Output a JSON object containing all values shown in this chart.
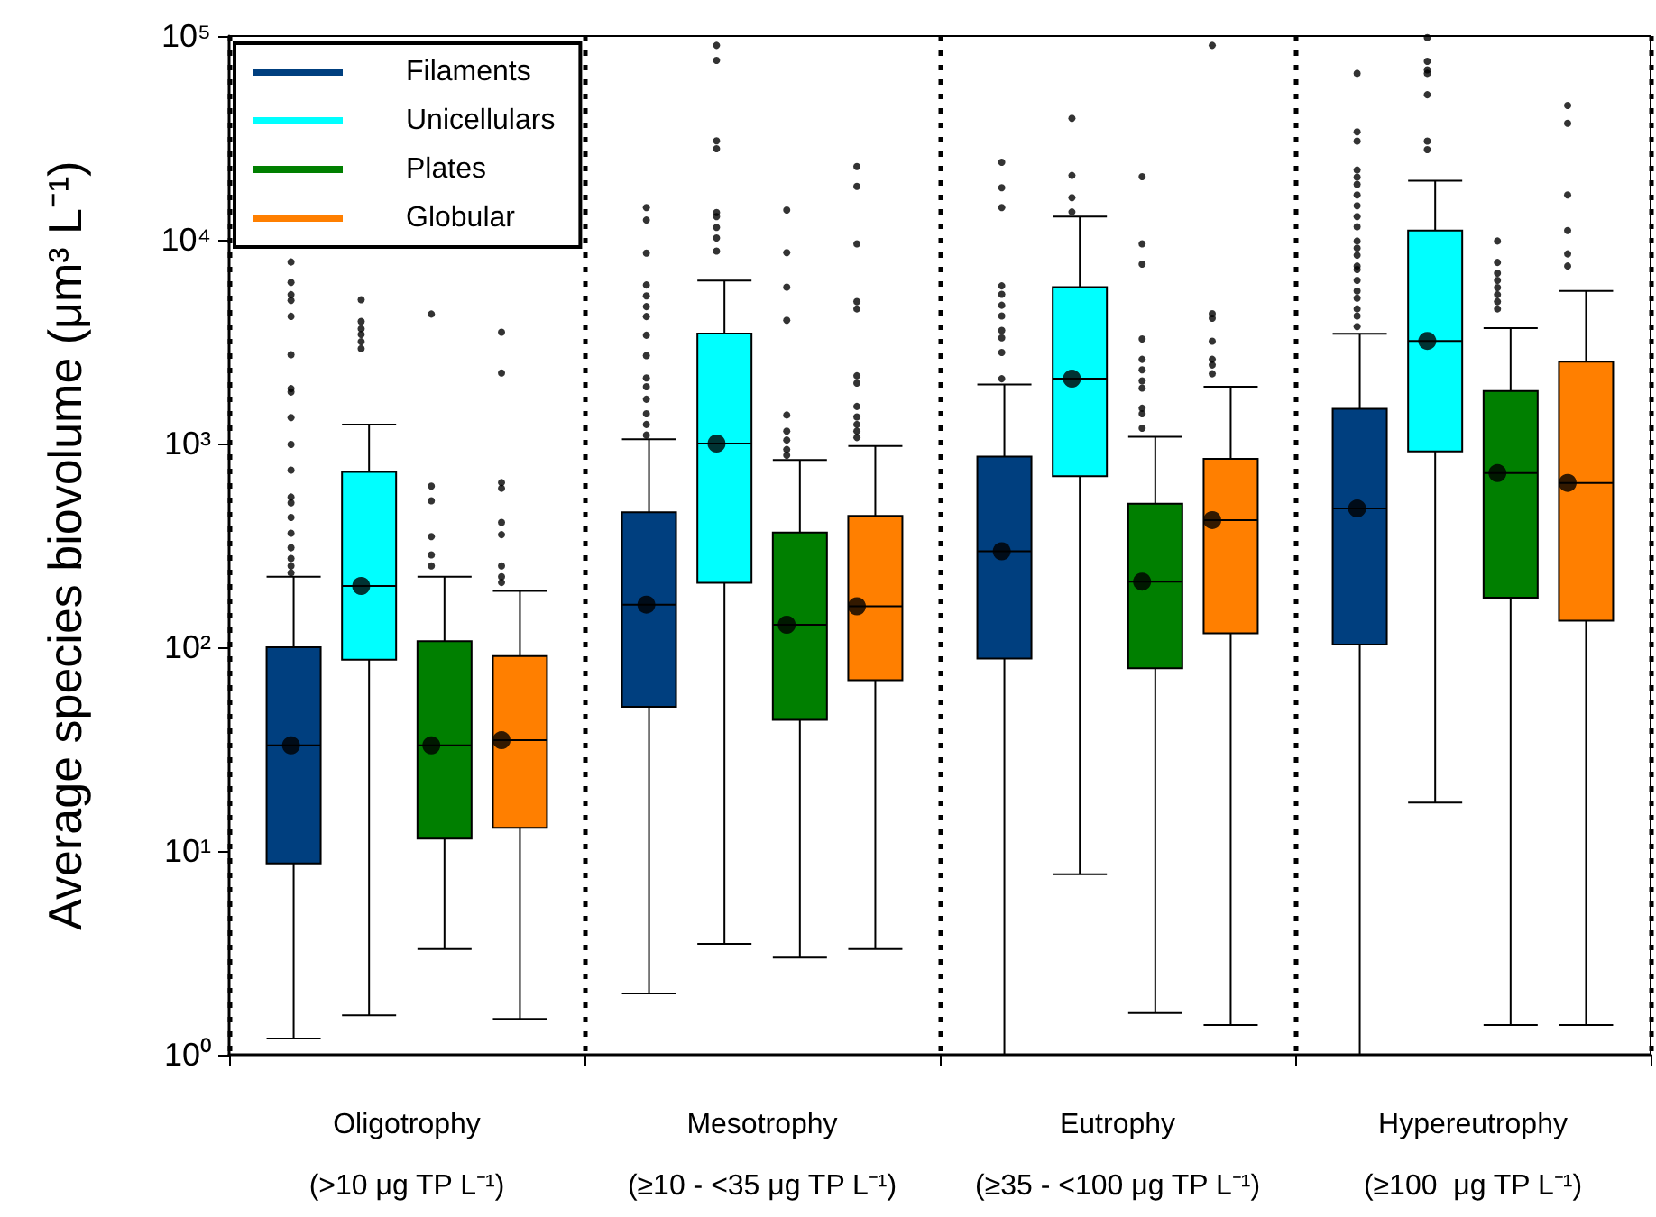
{
  "chart_data": {
    "type": "box",
    "ylabel": "Average species biovolume (μm³ L⁻¹)",
    "categories": [
      "Oligotrophy\n(>10 μg TP L⁻¹)",
      "Mesotrophy\n(≥10 - <35 μg TP L⁻¹)",
      "Eutrophy\n(≥35 - <100 μg TP L⁻¹)",
      "Hypereutrophy\n(≥100  μg TP L⁻¹)"
    ],
    "log": true,
    "ylim": [
      1,
      100000
    ],
    "yticks": [
      {
        "value": 1,
        "label": "10⁰"
      },
      {
        "value": 10,
        "label": "10¹"
      },
      {
        "value": 100,
        "label": "10²"
      },
      {
        "value": 1000,
        "label": "10³"
      },
      {
        "value": 10000,
        "label": "10⁴"
      },
      {
        "value": 100000,
        "label": "10⁵"
      }
    ],
    "grid": "x",
    "legend": "top left",
    "series": [
      {
        "name": "Filaments",
        "color": "#003f7f",
        "boxes": [
          {
            "low": 1.2,
            "q1": 8.7,
            "median": 33,
            "q3": 100,
            "high": 222,
            "mean": 33,
            "outliers": [
              7780,
              6180,
              5380,
              5040,
              4210,
              2730,
              1860,
              1790,
              1340,
              990,
              740,
              546,
              512,
              434,
              363,
              308,
              273,
              251,
              232
            ]
          },
          {
            "low": 2.0,
            "q1": 51,
            "median": 162,
            "q3": 460,
            "high": 1050,
            "mean": 162,
            "outliers": [
              14400,
              12500,
              8600,
              6000,
              5300,
              4700,
              4200,
              3400,
              2700,
              2100,
              1900,
              1650,
              1400,
              1240,
              1100
            ]
          },
          {
            "low": 1.0,
            "q1": 88,
            "median": 296,
            "q3": 862,
            "high": 1950,
            "mean": 296,
            "outliers": [
              24000,
              18000,
              14400,
              5940,
              5400,
              4770,
              4230,
              3590,
              3300,
              2800,
              2080
            ]
          },
          {
            "low": 1.0,
            "q1": 103,
            "median": 480,
            "q3": 1480,
            "high": 3460,
            "mean": 480,
            "outliers": [
              65600,
              33900,
              30500,
              22000,
              20300,
              18700,
              16600,
              14700,
              13000,
              11600,
              9860,
              9100,
              8400,
              7430,
              7140,
              6320,
              5610,
              5170,
              4580,
              4230,
              3750
            ]
          }
        ]
      },
      {
        "name": "Unicellulars",
        "color": "#00ffff",
        "boxes": [
          {
            "low": 1.56,
            "q1": 87,
            "median": 200,
            "q3": 726,
            "high": 1240,
            "mean": 200,
            "outliers": [
              5080,
              3980,
              3660,
              3430,
              3160,
              2920
            ]
          },
          {
            "low": 3.5,
            "q1": 207,
            "median": 1000,
            "q3": 3470,
            "high": 6300,
            "mean": 1000,
            "outliers": [
              90000,
              76000,
              30600,
              28000,
              13600,
              13000,
              11500,
              10200,
              8800
            ]
          },
          {
            "low": 7.7,
            "q1": 692,
            "median": 2080,
            "q3": 5860,
            "high": 13000,
            "mean": 2080,
            "outliers": [
              39500,
              20700,
              16100,
              13700
            ]
          },
          {
            "low": 17.3,
            "q1": 915,
            "median": 3190,
            "q3": 11100,
            "high": 19500,
            "mean": 3190,
            "outliers": [
              98200,
              75200,
              68200,
              65600,
              51500,
              30500,
              27700
            ]
          }
        ]
      },
      {
        "name": "Plates",
        "color": "#007f00",
        "boxes": [
          {
            "low": 3.3,
            "q1": 11.5,
            "median": 33,
            "q3": 107,
            "high": 222,
            "mean": 33,
            "outliers": [
              4320,
              618,
              524,
              349,
              284,
              251
            ]
          },
          {
            "low": 3.0,
            "q1": 44,
            "median": 129,
            "q3": 366,
            "high": 830,
            "mean": 129,
            "outliers": [
              14000,
              8650,
              5860,
              4030,
              1380,
              1150,
              1040,
              935,
              875
            ]
          },
          {
            "low": 1.6,
            "q1": 79,
            "median": 210,
            "q3": 507,
            "high": 1080,
            "mean": 210,
            "outliers": [
              20400,
              9550,
              7600,
              3260,
              2590,
              2300,
              2030,
              1870,
              1490,
              1400,
              1190
            ]
          },
          {
            "low": 1.4,
            "q1": 175,
            "median": 716,
            "q3": 1810,
            "high": 3680,
            "mean": 716,
            "outliers": [
              9860,
              7740,
              6860,
              6320,
              5830,
              5380,
              4970,
              4580
            ]
          }
        ]
      },
      {
        "name": "Globular",
        "color": "#ff7f00",
        "boxes": [
          {
            "low": 1.5,
            "q1": 13,
            "median": 35,
            "q3": 90.5,
            "high": 189,
            "mean": 35,
            "outliers": [
              3520,
              2220,
              643,
              603,
              410,
              357,
              251,
              222,
              208
            ]
          },
          {
            "low": 3.3,
            "q1": 69,
            "median": 159,
            "q3": 441,
            "high": 973,
            "mean": 159,
            "outliers": [
              22900,
              18300,
              9550,
              4980,
              4580,
              2150,
              1980,
              1520,
              1350,
              1240,
              1150,
              1070
            ]
          },
          {
            "low": 1.4,
            "q1": 117,
            "median": 421,
            "q3": 840,
            "high": 1900,
            "mean": 421,
            "outliers": [
              90000,
              4340,
              4120,
              3180,
              2590,
              2430,
              2200
            ]
          },
          {
            "low": 1.4,
            "q1": 135,
            "median": 641,
            "q3": 2520,
            "high": 5610,
            "mean": 641,
            "outliers": [
              45600,
              37300,
              16600,
              11100,
              8530,
              7430
            ]
          }
        ]
      }
    ]
  }
}
